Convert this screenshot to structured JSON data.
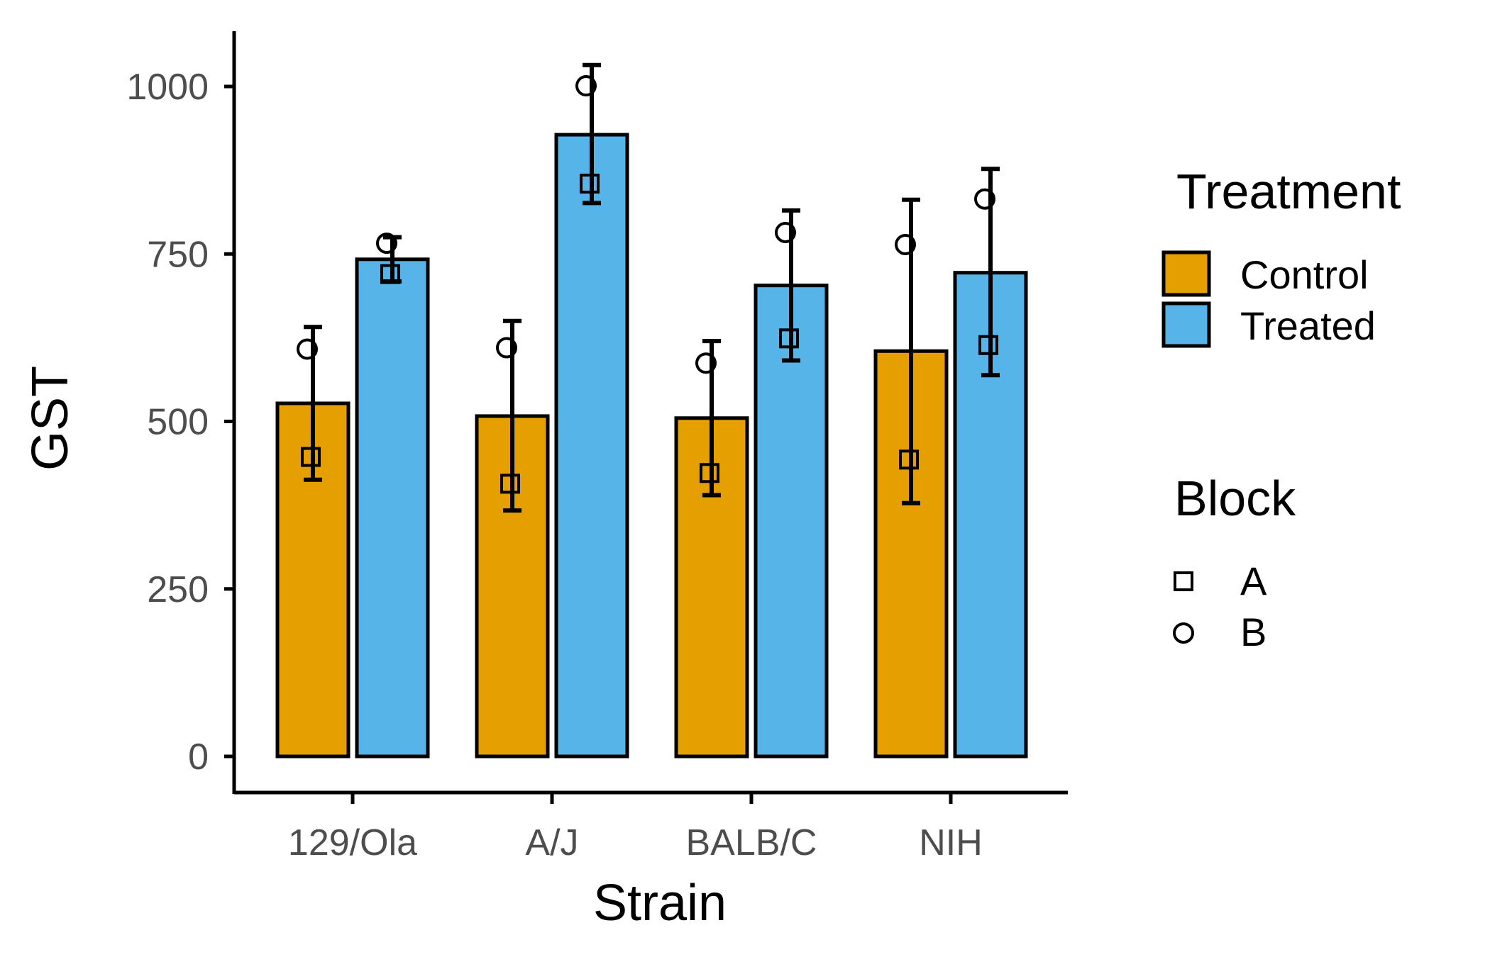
{
  "chart_data": {
    "type": "bar",
    "title": "",
    "xlabel": "Strain",
    "ylabel": "GST",
    "categories": [
      "129/Ola",
      "A/J",
      "BALB/C",
      "NIH"
    ],
    "ylim": [
      0,
      1080
    ],
    "yticks": [
      0,
      250,
      500,
      750,
      1000
    ],
    "ytick_labels": [
      "0",
      "250",
      "500",
      "750",
      "1000"
    ],
    "series": [
      {
        "name": "Control",
        "color": "#E69F00",
        "values": [
          527,
          508,
          505,
          605
        ],
        "error_low": [
          413,
          367,
          390,
          378
        ],
        "error_high": [
          641,
          650,
          620,
          831
        ],
        "points": {
          "A": [
            447,
            407,
            423,
            443
          ],
          "B": [
            608,
            610,
            587,
            764
          ]
        }
      },
      {
        "name": "Treated",
        "color": "#56B4E9",
        "values": [
          742,
          928,
          703,
          722
        ],
        "error_low": [
          709,
          826,
          591,
          569
        ],
        "error_high": [
          775,
          1032,
          815,
          877
        ],
        "points": {
          "A": [
            720,
            855,
            624,
            614
          ],
          "B": [
            766,
            1001,
            782,
            832
          ]
        }
      }
    ],
    "legend_fill": {
      "title": "Treatment",
      "items": [
        {
          "label": "Control",
          "color": "#E69F00"
        },
        {
          "label": "Treated",
          "color": "#56B4E9"
        }
      ]
    },
    "legend_shape": {
      "title": "Block",
      "items": [
        {
          "label": "A",
          "shape": "square"
        },
        {
          "label": "B",
          "shape": "circle"
        }
      ]
    },
    "legend_position": "right",
    "grid": false
  }
}
